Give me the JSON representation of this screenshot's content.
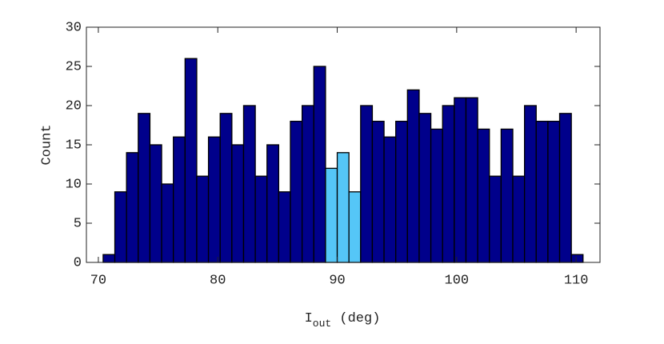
{
  "chart_data": {
    "type": "histogram",
    "xlabel": {
      "base": "I",
      "sub": "out",
      "rest": " (deg)"
    },
    "ylabel": "Count",
    "bins": [
      70.4,
      71.38,
      72.36,
      73.34,
      74.32,
      75.3,
      76.28,
      77.26,
      78.24,
      79.22,
      80.2,
      81.18,
      82.16,
      83.14,
      84.12,
      85.1,
      86.08,
      87.06,
      88.04,
      89.02,
      90.0,
      90.98,
      91.96,
      92.94,
      93.92,
      94.9,
      95.88,
      96.86,
      97.84,
      98.82,
      99.8,
      100.78,
      101.76,
      102.74,
      103.72,
      104.7,
      105.68,
      106.66,
      107.64,
      108.62,
      109.6,
      110.58
    ],
    "values": [
      1,
      9,
      14,
      19,
      15,
      10,
      16,
      26,
      11,
      16,
      19,
      15,
      20,
      11,
      15,
      9,
      18,
      20,
      25,
      12,
      14,
      9,
      20,
      18,
      16,
      18,
      22,
      19,
      17,
      20,
      21,
      21,
      17,
      11,
      17,
      11,
      20,
      18,
      18,
      19,
      1
    ],
    "colors": [
      "#00008b",
      "#00008b",
      "#00008b",
      "#00008b",
      "#00008b",
      "#00008b",
      "#00008b",
      "#00008b",
      "#00008b",
      "#00008b",
      "#00008b",
      "#00008b",
      "#00008b",
      "#00008b",
      "#00008b",
      "#00008b",
      "#00008b",
      "#00008b",
      "#00008b",
      "#55c6f7",
      "#55c6f7",
      "#55c6f7",
      "#00008b",
      "#00008b",
      "#00008b",
      "#00008b",
      "#00008b",
      "#00008b",
      "#00008b",
      "#00008b",
      "#00008b",
      "#00008b",
      "#00008b",
      "#00008b",
      "#00008b",
      "#00008b",
      "#00008b",
      "#00008b",
      "#00008b",
      "#00008b",
      "#00008b"
    ],
    "xlim": [
      69,
      112
    ],
    "xticks": [
      70,
      80,
      90,
      100,
      110
    ],
    "ylim": [
      0,
      30
    ],
    "yticks": [
      0,
      5,
      10,
      15,
      20,
      25,
      30
    ],
    "grid": false
  }
}
